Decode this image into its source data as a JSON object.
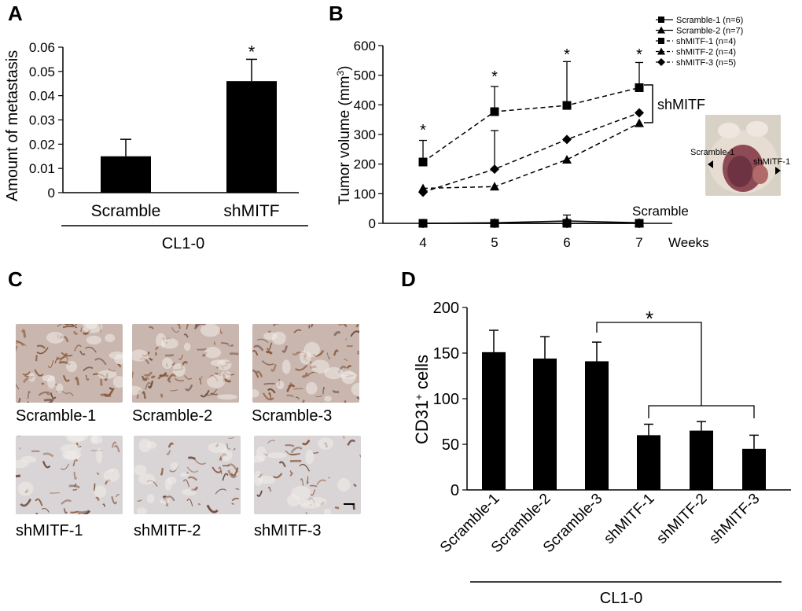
{
  "panels": {
    "A": {
      "letter": "A"
    },
    "B": {
      "letter": "B"
    },
    "C": {
      "letter": "C"
    },
    "D": {
      "letter": "D"
    }
  },
  "chart_data": [
    {
      "id": "A",
      "type": "bar",
      "categories": [
        "Scramble",
        "shMITF"
      ],
      "values": [
        0.015,
        0.046
      ],
      "errors": [
        0.007,
        0.009
      ],
      "ylabel": "Amount of metastasis",
      "group_label": "CL1-0",
      "yticks": [
        "0",
        "0.01",
        "0.02",
        "0.03",
        "0.04",
        "0.05",
        "0.06"
      ],
      "ylim": [
        0,
        0.06
      ],
      "significance": [
        "",
        "*"
      ],
      "color": "#000000"
    },
    {
      "id": "B",
      "type": "line",
      "x": [
        4,
        5,
        6,
        7
      ],
      "xticks": [
        "4",
        "5",
        "6",
        "7"
      ],
      "xlabel": "Weeks",
      "ylabel_main": "Tumor volume (mm",
      "ylabel_sup": "3",
      "ylabel_end": ")",
      "yticks": [
        "0",
        "100",
        "200",
        "300",
        "400",
        "500",
        "600"
      ],
      "ylim": [
        0,
        600
      ],
      "legend_position": "top-right",
      "series": [
        {
          "name": "Scramble-1 (n=6)",
          "marker": "square",
          "values": [
            0,
            0,
            0,
            0
          ],
          "errors": [
            0,
            0,
            0,
            0
          ],
          "dashed": false
        },
        {
          "name": "Scramble-2 (n=7)",
          "marker": "triangle",
          "values": [
            0,
            2,
            8,
            2
          ],
          "errors": [
            0,
            0,
            20,
            0
          ],
          "dashed": false
        },
        {
          "name": "shMITF-1 (n=4)",
          "marker": "square",
          "values": [
            207,
            377,
            398,
            458
          ],
          "errors": [
            73,
            85,
            148,
            85
          ],
          "dashed": true
        },
        {
          "name": "shMITF-2 (n=4)",
          "marker": "triangle",
          "values": [
            118,
            124,
            215,
            338
          ],
          "errors": [
            0,
            0,
            0,
            0
          ],
          "dashed": true
        },
        {
          "name": "shMITF-3 (n=5)",
          "marker": "diamond",
          "values": [
            105,
            183,
            283,
            373
          ],
          "errors": [
            0,
            130,
            0,
            0
          ],
          "dashed": true
        }
      ],
      "significance": [
        "*",
        "*",
        "*",
        "*"
      ],
      "annotations": {
        "shmitf_bracket": "shMITF",
        "scramble_label": "Scramble"
      }
    },
    {
      "id": "D",
      "type": "bar",
      "categories": [
        "Scramble-1",
        "Scramble-2",
        "Scramble-3",
        "shMITF-1",
        "shMITF-2",
        "shMITF-3"
      ],
      "values": [
        151,
        144,
        141,
        60,
        65,
        45
      ],
      "errors": [
        24,
        24,
        21,
        12,
        10,
        15
      ],
      "ylabel_main": "CD31",
      "ylabel_sup": "+",
      "ylabel_end": " cells",
      "group_label": "CL1-0",
      "yticks": [
        "0",
        "50",
        "100",
        "150",
        "200"
      ],
      "ylim": [
        0,
        200
      ],
      "significance": "*",
      "color": "#000000"
    }
  ],
  "inset_photo": {
    "left_label": "Scramble-1",
    "right_label": "shMITF-1"
  },
  "micrographs": [
    {
      "caption": "Scramble-1"
    },
    {
      "caption": "Scramble-2"
    },
    {
      "caption": "Scramble-3"
    },
    {
      "caption": "shMITF-1"
    },
    {
      "caption": "shMITF-2"
    },
    {
      "caption": "shMITF-3"
    }
  ],
  "colors": {
    "bar": "#000000",
    "tissue_light": "#dcd3cf",
    "tissue_stain": "#8c5a3c"
  }
}
